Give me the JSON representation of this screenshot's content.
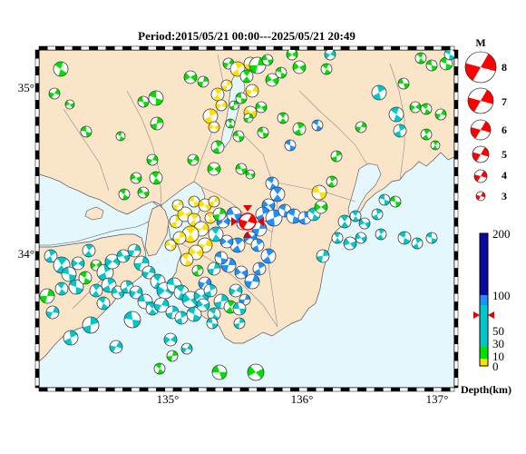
{
  "title": "Period:2015/05/21 00:00---2025/05/21 20:49",
  "map": {
    "x_ticks": [
      "135°",
      "136°",
      "137°"
    ],
    "y_ticks": [
      "35°",
      "34°"
    ]
  },
  "magnitude_legend": {
    "header": "M",
    "items": [
      "8",
      "7",
      "6",
      "5",
      "4",
      "3"
    ]
  },
  "depth_legend": {
    "ticks": [
      "200",
      "100",
      "50",
      "30",
      "10",
      "0"
    ],
    "unit": "Depth(km)"
  },
  "colors": {
    "sea": "#e4f7fc",
    "land": "#fbe5c9",
    "coast": "#555555",
    "depth_0_10": "#ffe100",
    "depth_10_30": "#00e000",
    "depth_30_60": "#00c7cc",
    "depth_60_100": "#1e90ff",
    "depth_100_200": "#0a0aa0",
    "legend_red": "#ff0000",
    "main_marker": "#ff0000"
  }
}
